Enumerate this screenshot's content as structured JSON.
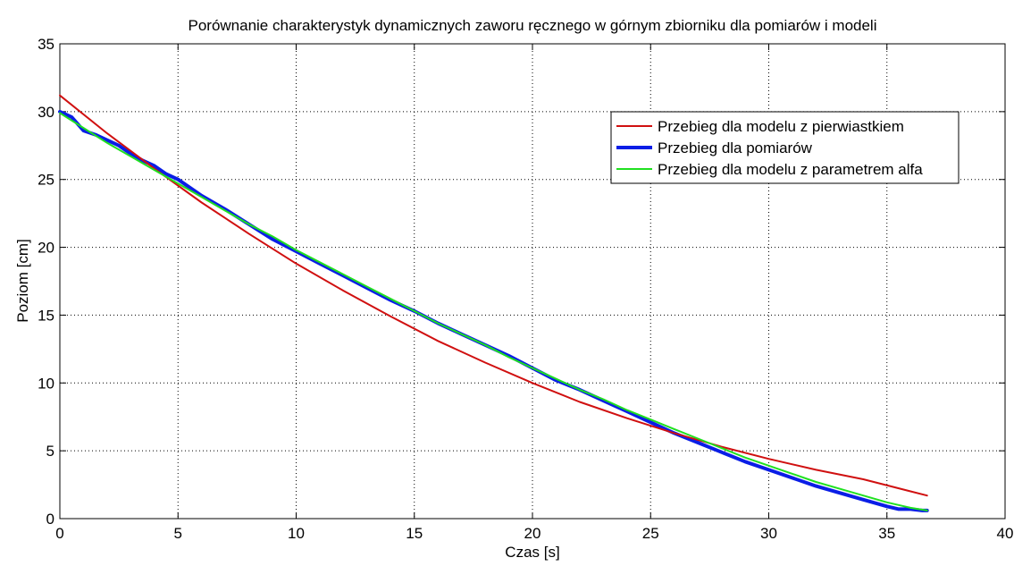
{
  "chart_data": {
    "type": "line",
    "title": "Porównanie charakterystyk dynamicznych zaworu ręcznego w górnym zbiorniku dla pomiarów i modeli",
    "xlabel": "Czas [s]",
    "ylabel": "Poziom [cm]",
    "xlim": [
      0,
      40
    ],
    "ylim": [
      0,
      35
    ],
    "xticks": [
      0,
      5,
      10,
      15,
      20,
      25,
      30,
      35,
      40
    ],
    "yticks": [
      0,
      5,
      10,
      15,
      20,
      25,
      30,
      35
    ],
    "grid": true,
    "legend_position": "top-right",
    "series": [
      {
        "name": "Przebieg dla modelu z pierwiastkiem",
        "color": "#d01010",
        "width": 2,
        "x": [
          0,
          2,
          4,
          6,
          8,
          10,
          12,
          14,
          16,
          18,
          20,
          22,
          24,
          26,
          28,
          30,
          32,
          34,
          36.7
        ],
        "y": [
          31.2,
          28.4,
          25.8,
          23.3,
          21.0,
          18.8,
          16.8,
          14.9,
          13.1,
          11.5,
          10.0,
          8.6,
          7.4,
          6.3,
          5.3,
          4.4,
          3.6,
          2.9,
          1.7
        ]
      },
      {
        "name": "Przebieg dla pomiarów",
        "color": "#0a1ee6",
        "width": 4,
        "x": [
          0,
          0.5,
          1,
          1.5,
          2,
          2.5,
          3,
          3.5,
          4,
          4.5,
          5,
          6,
          7,
          8,
          9,
          10,
          11,
          12,
          13,
          14,
          15,
          16,
          17,
          18,
          19,
          20,
          21,
          22,
          23,
          24,
          25,
          26,
          27,
          28,
          29,
          30,
          31,
          32,
          33,
          34,
          35,
          35.5,
          36,
          36.5,
          36.7
        ],
        "y": [
          30.0,
          29.6,
          28.6,
          28.3,
          27.9,
          27.5,
          26.9,
          26.4,
          26.0,
          25.4,
          25.0,
          23.8,
          22.8,
          21.7,
          20.6,
          19.7,
          18.8,
          17.9,
          17.0,
          16.1,
          15.3,
          14.4,
          13.6,
          12.8,
          12.0,
          11.1,
          10.2,
          9.5,
          8.7,
          7.9,
          7.1,
          6.3,
          5.6,
          4.9,
          4.2,
          3.6,
          3.0,
          2.4,
          1.9,
          1.4,
          0.9,
          0.7,
          0.7,
          0.6,
          0.6
        ]
      },
      {
        "name": "Przebieg dla modelu z parametrem alfa",
        "color": "#20e020",
        "width": 2,
        "x": [
          0,
          1,
          2,
          3,
          4,
          5,
          6,
          7,
          8,
          9,
          10,
          11,
          12,
          13,
          14,
          15,
          16,
          17,
          18,
          19,
          20,
          21,
          22,
          23,
          24,
          25,
          26,
          27,
          28,
          29,
          30,
          31,
          32,
          33,
          34,
          35,
          36,
          36.7
        ],
        "y": [
          29.9,
          28.8,
          27.7,
          26.7,
          25.7,
          24.7,
          23.7,
          22.7,
          21.7,
          20.8,
          19.8,
          18.9,
          18.0,
          17.1,
          16.2,
          15.3,
          14.4,
          13.6,
          12.8,
          11.9,
          11.1,
          10.3,
          9.5,
          8.8,
          8.0,
          7.3,
          6.6,
          5.9,
          5.2,
          4.5,
          3.9,
          3.3,
          2.7,
          2.2,
          1.7,
          1.2,
          0.8,
          0.6
        ]
      }
    ]
  }
}
